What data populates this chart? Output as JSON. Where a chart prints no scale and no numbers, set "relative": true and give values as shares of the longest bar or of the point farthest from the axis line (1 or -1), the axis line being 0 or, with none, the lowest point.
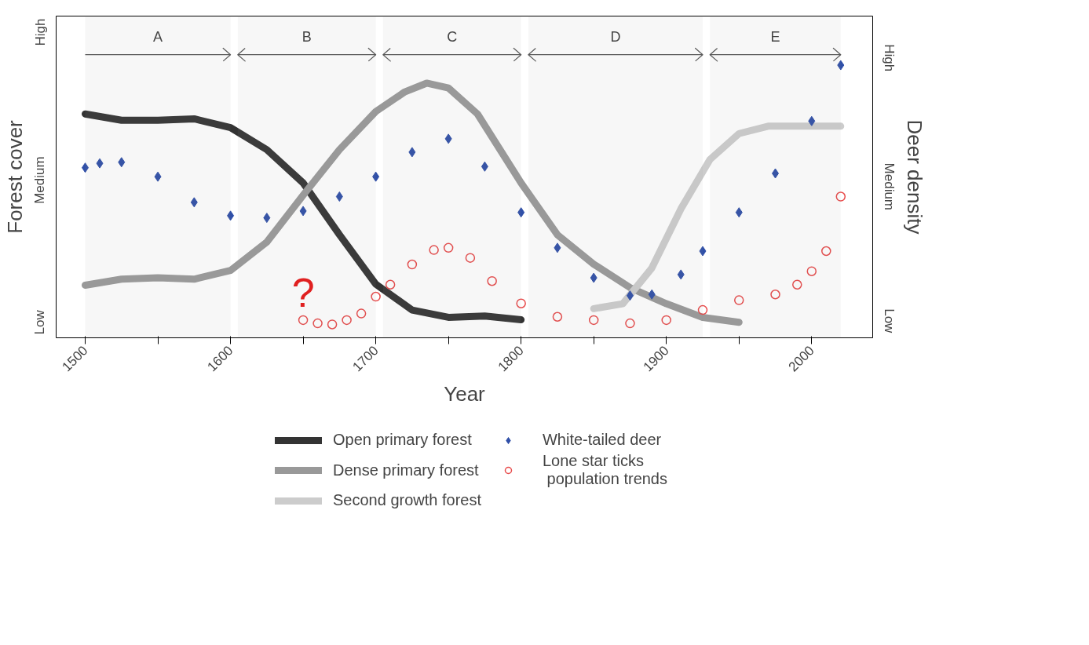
{
  "chart_data": {
    "type": "line",
    "relative": true,
    "xlabel": "Year",
    "ylabel": "Forest cover",
    "y2label": "Deer density",
    "xlim": [
      1480,
      2042
    ],
    "xticks": [
      1500,
      {
        "value": 1550,
        "label": null
      },
      1600,
      {
        "value": 1650,
        "label": null
      },
      1700,
      {
        "value": 1750,
        "label": null
      },
      1800,
      {
        "value": 1850,
        "label": null
      },
      1900,
      {
        "value": 1950,
        "label": null
      },
      2000
    ],
    "grid": false,
    "legend": "bottom",
    "bands": [
      {
        "axis": "x",
        "from": 1500,
        "to": 1600,
        "label": "A"
      },
      {
        "axis": "x",
        "from": 1605,
        "to": 1700,
        "label": "B"
      },
      {
        "axis": "x",
        "from": 1705,
        "to": 1800,
        "label": "C"
      },
      {
        "axis": "x",
        "from": 1805,
        "to": 1925,
        "label": "D"
      },
      {
        "axis": "x",
        "from": 1930,
        "to": 2020,
        "label": "E"
      }
    ],
    "annotations": [
      "Low",
      "Medium",
      "High",
      "Low",
      "Medium",
      "High",
      {
        "text": "?",
        "x": 1650,
        "y": 0.065
      }
    ],
    "series": [
      {
        "name": "Open primary forest",
        "color": "#333333",
        "x": [
          1500,
          1525,
          1550,
          1575,
          1600,
          1625,
          1650,
          1675,
          1700,
          1725,
          1750,
          1775,
          1800
        ],
        "values": [
          0.821,
          0.798,
          0.798,
          0.803,
          0.771,
          0.69,
          0.568,
          0.378,
          0.197,
          0.102,
          0.075,
          0.08,
          0.066
        ]
      },
      {
        "name": "Dense primary forest",
        "color": "#999999",
        "x": [
          1500,
          1525,
          1550,
          1575,
          1600,
          1625,
          1650,
          1675,
          1700,
          1720,
          1735,
          1750,
          1770,
          1800,
          1825,
          1850,
          1875,
          1900,
          1925,
          1950
        ],
        "values": [
          0.193,
          0.215,
          0.22,
          0.215,
          0.247,
          0.351,
          0.523,
          0.69,
          0.83,
          0.902,
          0.934,
          0.916,
          0.821,
          0.568,
          0.378,
          0.27,
          0.184,
          0.125,
          0.075,
          0.057
        ]
      },
      {
        "name": "Second growth forest",
        "color": "#cccccc",
        "x": [
          1850,
          1870,
          1890,
          1910,
          1930,
          1950,
          1970,
          2000,
          2020
        ],
        "values": [
          0.107,
          0.125,
          0.256,
          0.473,
          0.654,
          0.749,
          0.776,
          0.776,
          0.776
        ]
      },
      {
        "name": "White-tailed deer",
        "type": "scatter",
        "marker": "diamond",
        "color": "#2f4fa8",
        "x": [
          1500,
          1510,
          1525,
          1550,
          1575,
          1600,
          1625,
          1650,
          1675,
          1700,
          1725,
          1750,
          1775,
          1800,
          1825,
          1850,
          1875,
          1890,
          1910,
          1925,
          1950,
          1975,
          2000,
          2020
        ],
        "values": [
          0.624,
          0.64,
          0.644,
          0.591,
          0.497,
          0.448,
          0.44,
          0.465,
          0.518,
          0.591,
          0.681,
          0.73,
          0.628,
          0.46,
          0.33,
          0.22,
          0.155,
          0.159,
          0.232,
          0.318,
          0.46,
          0.603,
          0.795,
          1.0
        ]
      },
      {
        "name": "Lone star ticks\n population trends",
        "type": "scatter",
        "marker": "circle",
        "color": "#e84a4a",
        "x": [
          1650,
          1660,
          1670,
          1680,
          1690,
          1700,
          1710,
          1725,
          1740,
          1750,
          1765,
          1780,
          1800,
          1825,
          1850,
          1875,
          1900,
          1925,
          1950,
          1975,
          1990,
          2000,
          2010,
          2020
        ],
        "values": [
          0.065,
          0.053,
          0.049,
          0.065,
          0.089,
          0.151,
          0.195,
          0.269,
          0.322,
          0.33,
          0.293,
          0.208,
          0.126,
          0.077,
          0.065,
          0.053,
          0.065,
          0.102,
          0.138,
          0.159,
          0.195,
          0.244,
          0.318,
          0.518
        ]
      }
    ]
  }
}
